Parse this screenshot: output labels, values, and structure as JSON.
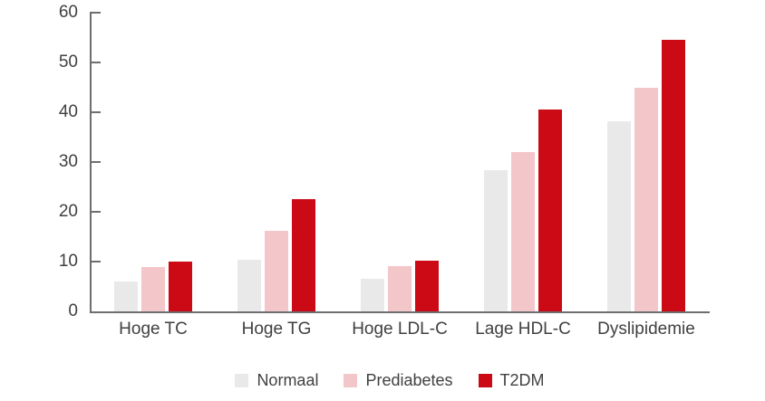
{
  "colors": {
    "normaal": "#e9e9e9",
    "prediabetes": "#f3c6c9",
    "t2dm": "#cb0a15",
    "axis": "#6d6e71",
    "text": "#414042",
    "background": "#ffffff"
  },
  "chart_data": {
    "type": "bar",
    "title": "",
    "xlabel": "",
    "ylabel": "",
    "categories": [
      "Hoge TC",
      "Hoge TG",
      "Hoge LDL-C",
      "Lage HDL-C",
      "Dyslipidemie"
    ],
    "series": [
      {
        "name": "Normaal",
        "color_key": "normaal",
        "values": [
          6.1,
          10.4,
          6.5,
          28.3,
          38.2
        ]
      },
      {
        "name": "Prediabetes",
        "color_key": "prediabetes",
        "values": [
          8.9,
          16.1,
          9.1,
          32.0,
          44.9
        ]
      },
      {
        "name": "T2DM",
        "color_key": "t2dm",
        "values": [
          10.0,
          22.5,
          10.2,
          40.6,
          54.6
        ]
      }
    ],
    "ylim": [
      0,
      60
    ],
    "yticks": [
      0,
      10,
      20,
      30,
      40,
      50,
      60
    ],
    "grid": false,
    "legend_position": "bottom"
  }
}
